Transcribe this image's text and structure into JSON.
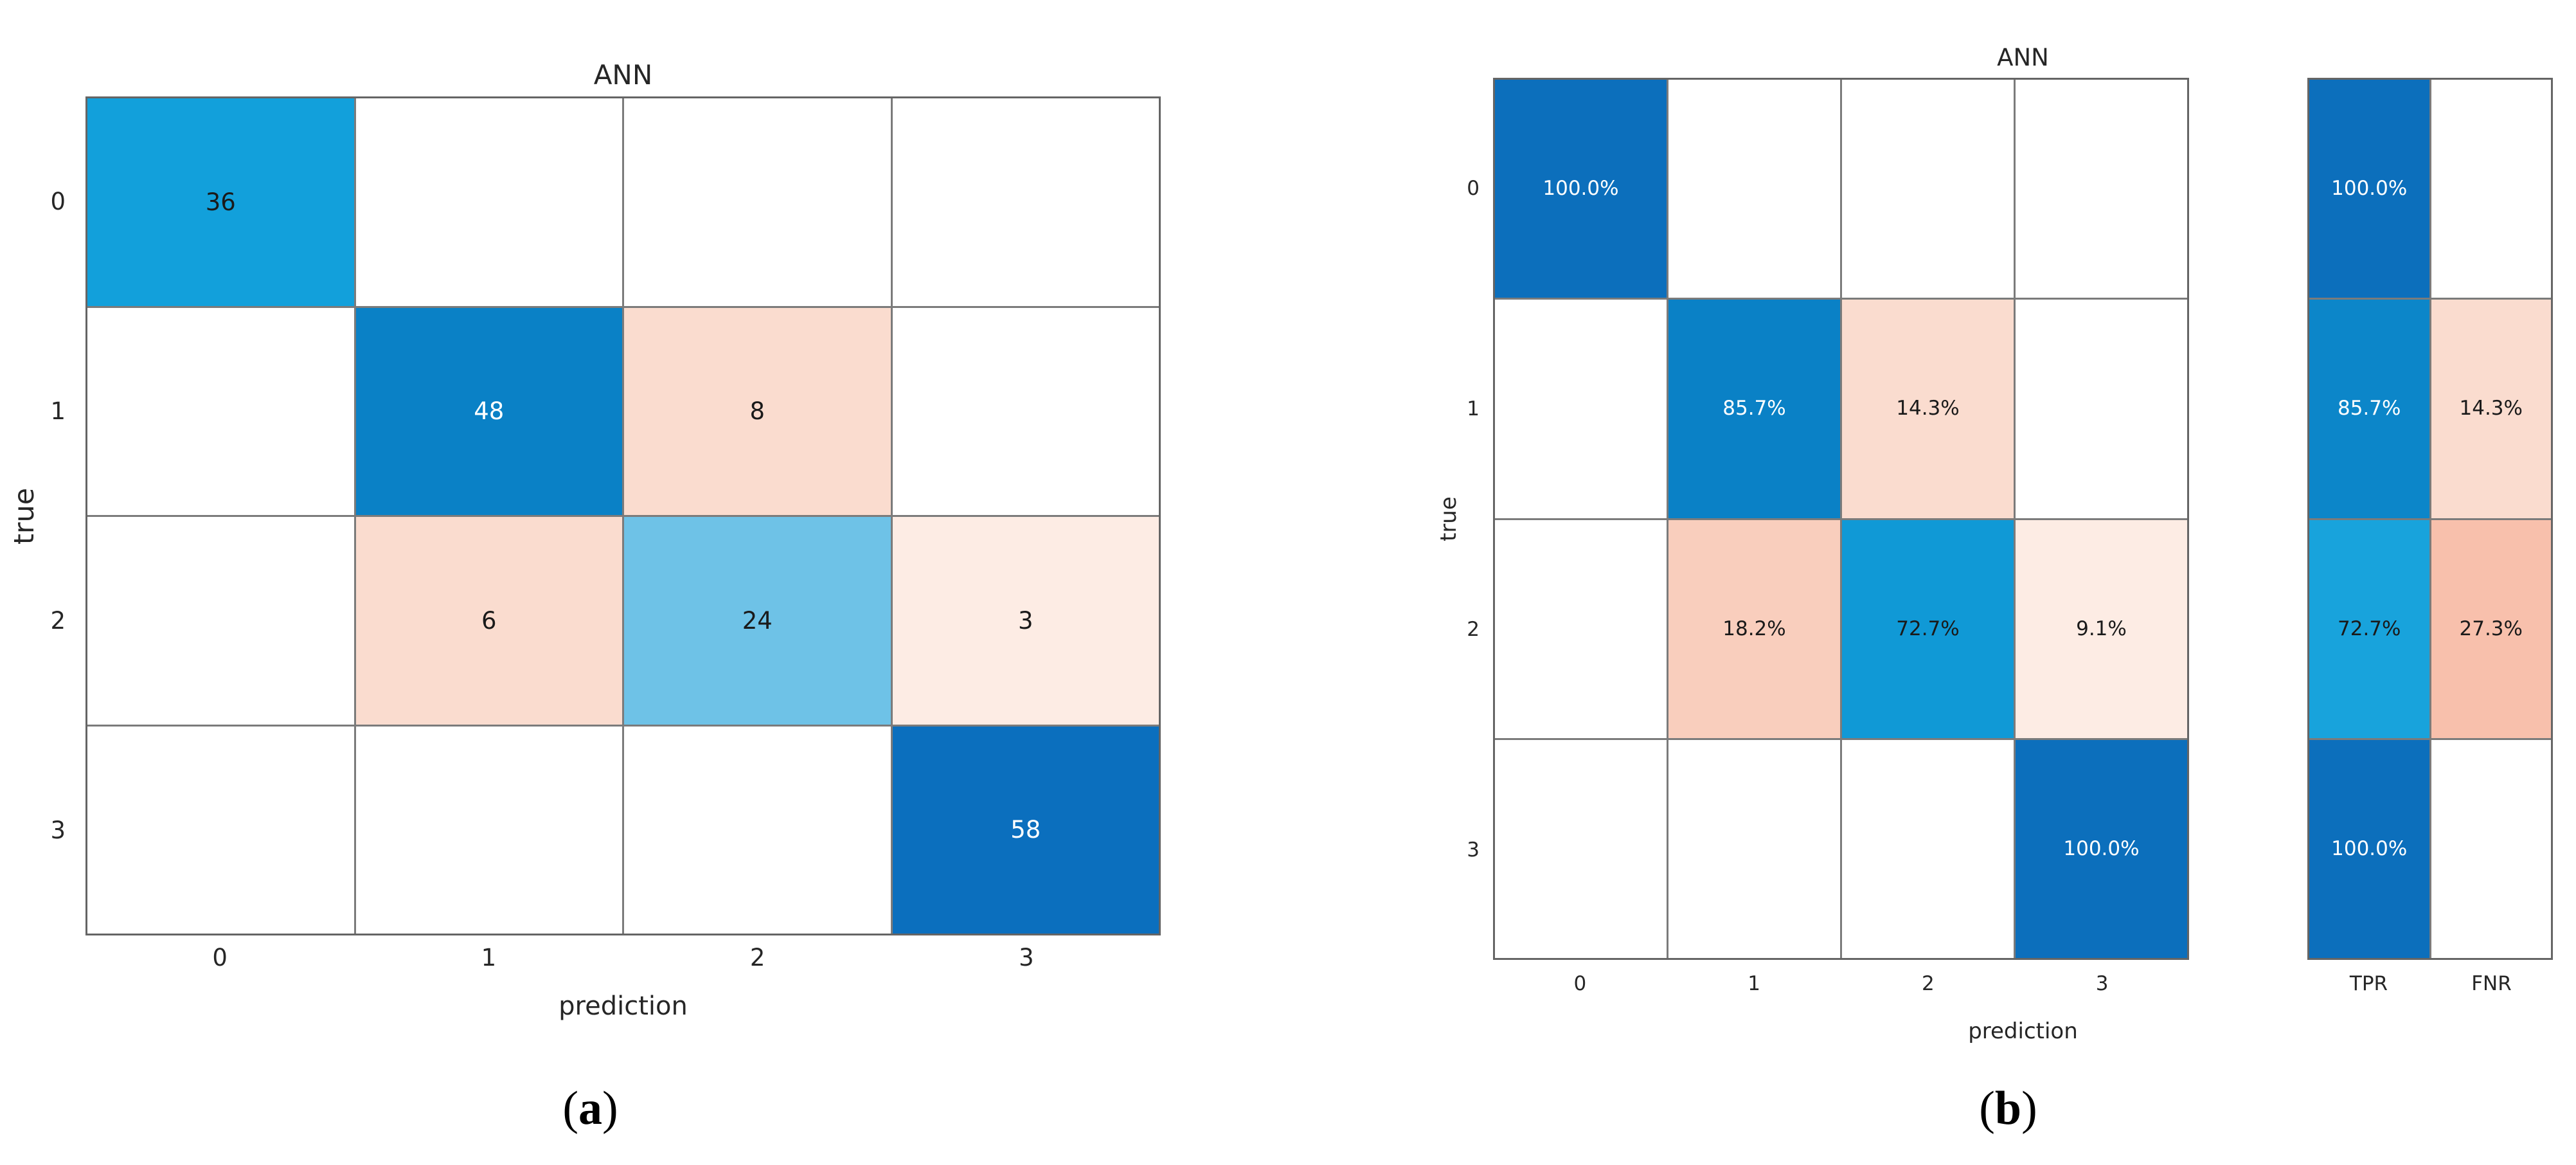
{
  "colors": {
    "background": "#ffffff",
    "grid_line": "#7b7b7b",
    "grid_border": "#656565",
    "text_dark": "#262626",
    "text_light": "#ffffff",
    "blue_dark": "#0c6fbc",
    "blue_mid": "#0a81c6",
    "blue_cyan": "#12a0db",
    "blue_sky": "#6ec2e7",
    "pink_light": "#fadccf",
    "pink_mid": "#f9cebd",
    "pink_faint": "#fdece4",
    "salmon": "#f8c0ac"
  },
  "panel_a": {
    "title": "ANN",
    "ylabel": "true",
    "xlabel": "prediction",
    "caption_open": "(",
    "caption_letter": "a",
    "caption_close": ")",
    "row_labels": [
      "0",
      "1",
      "2",
      "3"
    ],
    "col_labels": [
      "0",
      "1",
      "2",
      "3"
    ],
    "cells": [
      [
        {
          "text": "36",
          "bg": "#12a0db",
          "fg": "#1a1a1a"
        },
        {
          "text": "",
          "bg": "#ffffff",
          "fg": "#1a1a1a"
        },
        {
          "text": "",
          "bg": "#ffffff",
          "fg": "#1a1a1a"
        },
        {
          "text": "",
          "bg": "#ffffff",
          "fg": "#1a1a1a"
        }
      ],
      [
        {
          "text": "",
          "bg": "#ffffff",
          "fg": "#1a1a1a"
        },
        {
          "text": "48",
          "bg": "#0a81c6",
          "fg": "#ffffff"
        },
        {
          "text": "8",
          "bg": "#fadccf",
          "fg": "#1a1a1a"
        },
        {
          "text": "",
          "bg": "#ffffff",
          "fg": "#1a1a1a"
        }
      ],
      [
        {
          "text": "",
          "bg": "#ffffff",
          "fg": "#1a1a1a"
        },
        {
          "text": "6",
          "bg": "#fadccf",
          "fg": "#1a1a1a"
        },
        {
          "text": "24",
          "bg": "#6ec2e7",
          "fg": "#1a1a1a"
        },
        {
          "text": "3",
          "bg": "#fdece4",
          "fg": "#1a1a1a"
        }
      ],
      [
        {
          "text": "",
          "bg": "#ffffff",
          "fg": "#1a1a1a"
        },
        {
          "text": "",
          "bg": "#ffffff",
          "fg": "#1a1a1a"
        },
        {
          "text": "",
          "bg": "#ffffff",
          "fg": "#1a1a1a"
        },
        {
          "text": "58",
          "bg": "#0b6fbe",
          "fg": "#ffffff"
        }
      ]
    ]
  },
  "panel_b": {
    "title": "ANN",
    "ylabel": "true",
    "xlabel": "prediction",
    "caption_open": "(",
    "caption_letter": "b",
    "caption_close": ")",
    "row_labels": [
      "0",
      "1",
      "2",
      "3"
    ],
    "col_labels": [
      "0",
      "1",
      "2",
      "3"
    ],
    "cells": [
      [
        {
          "text": "100.0%",
          "bg": "#0c6fbc",
          "fg": "#ffffff"
        },
        {
          "text": "",
          "bg": "#ffffff",
          "fg": "#1a1a1a"
        },
        {
          "text": "",
          "bg": "#ffffff",
          "fg": "#1a1a1a"
        },
        {
          "text": "",
          "bg": "#ffffff",
          "fg": "#1a1a1a"
        }
      ],
      [
        {
          "text": "",
          "bg": "#ffffff",
          "fg": "#1a1a1a"
        },
        {
          "text": "85.7%",
          "bg": "#0a81c6",
          "fg": "#ffffff"
        },
        {
          "text": "14.3%",
          "bg": "#fadccf",
          "fg": "#1a1a1a"
        },
        {
          "text": "",
          "bg": "#ffffff",
          "fg": "#1a1a1a"
        }
      ],
      [
        {
          "text": "",
          "bg": "#ffffff",
          "fg": "#1a1a1a"
        },
        {
          "text": "18.2%",
          "bg": "#f9cebd",
          "fg": "#1a1a1a"
        },
        {
          "text": "72.7%",
          "bg": "#1099d6",
          "fg": "#1a1a1a"
        },
        {
          "text": "9.1%",
          "bg": "#fdece4",
          "fg": "#1a1a1a"
        }
      ],
      [
        {
          "text": "",
          "bg": "#ffffff",
          "fg": "#1a1a1a"
        },
        {
          "text": "",
          "bg": "#ffffff",
          "fg": "#1a1a1a"
        },
        {
          "text": "",
          "bg": "#ffffff",
          "fg": "#1a1a1a"
        },
        {
          "text": "100.0%",
          "bg": "#0c6fbc",
          "fg": "#ffffff"
        }
      ]
    ],
    "side_block": {
      "col_labels": [
        "TPR",
        "FNR"
      ],
      "cells": [
        [
          {
            "text": "100.0%",
            "bg": "#0c6fbc",
            "fg": "#ffffff"
          },
          {
            "text": "",
            "bg": "#ffffff",
            "fg": "#1a1a1a"
          }
        ],
        [
          {
            "text": "85.7%",
            "bg": "#0c86c9",
            "fg": "#ffffff"
          },
          {
            "text": "14.3%",
            "bg": "#fadccf",
            "fg": "#1a1a1a"
          }
        ],
        [
          {
            "text": "72.7%",
            "bg": "#18a3dc",
            "fg": "#1a1a1a"
          },
          {
            "text": "27.3%",
            "bg": "#f8c0ac",
            "fg": "#1a1a1a"
          }
        ],
        [
          {
            "text": "100.0%",
            "bg": "#0c6fbc",
            "fg": "#ffffff"
          },
          {
            "text": "",
            "bg": "#ffffff",
            "fg": "#1a1a1a"
          }
        ]
      ]
    }
  },
  "chart_data": [
    {
      "type": "heatmap",
      "panel": "a",
      "title": "ANN",
      "xlabel": "prediction",
      "ylabel": "true",
      "x_categories": [
        "0",
        "1",
        "2",
        "3"
      ],
      "y_categories": [
        "0",
        "1",
        "2",
        "3"
      ],
      "values": [
        [
          36,
          null,
          null,
          null
        ],
        [
          null,
          48,
          8,
          null
        ],
        [
          null,
          6,
          24,
          3
        ],
        [
          null,
          null,
          null,
          58
        ]
      ],
      "caption": "(a)",
      "legend_position": "none",
      "grid": true
    },
    {
      "type": "heatmap",
      "panel": "b",
      "title": "ANN",
      "xlabel": "prediction",
      "ylabel": "true",
      "x_categories": [
        "0",
        "1",
        "2",
        "3"
      ],
      "y_categories": [
        "0",
        "1",
        "2",
        "3"
      ],
      "values_percent": [
        [
          100.0,
          null,
          null,
          null
        ],
        [
          null,
          85.7,
          14.3,
          null
        ],
        [
          null,
          18.2,
          72.7,
          9.1
        ],
        [
          null,
          null,
          null,
          100.0
        ]
      ],
      "summary_columns": {
        "labels": [
          "TPR",
          "FNR"
        ],
        "TPR": [
          100.0,
          85.7,
          72.7,
          100.0
        ],
        "FNR": [
          null,
          14.3,
          27.3,
          null
        ]
      },
      "caption": "(b)",
      "legend_position": "none",
      "grid": true
    }
  ]
}
